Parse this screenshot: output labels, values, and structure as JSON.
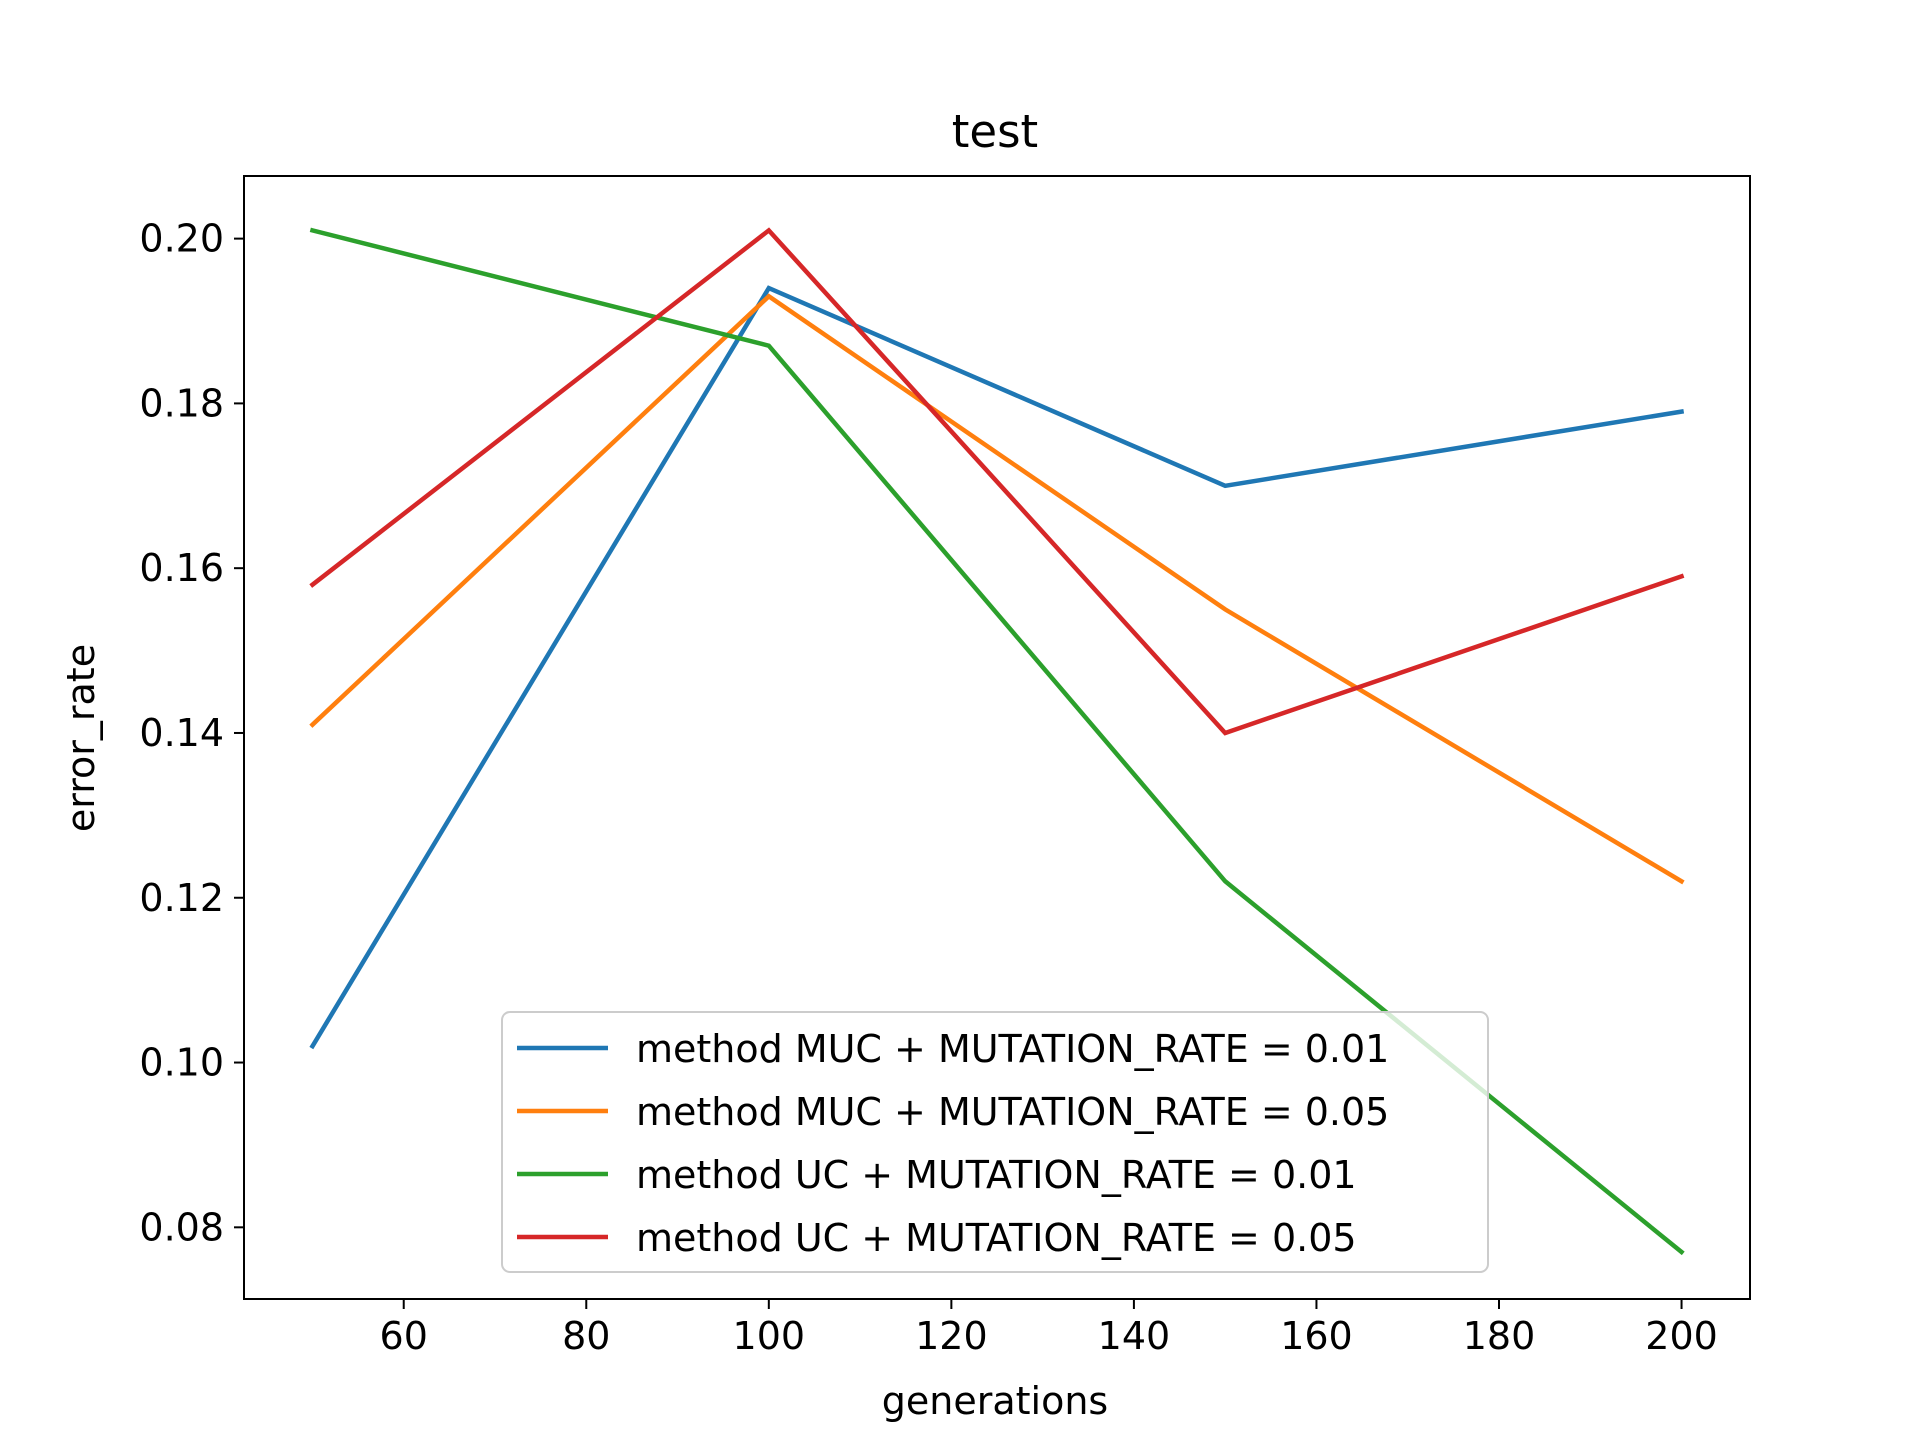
{
  "chart_data": {
    "type": "line",
    "title": "test",
    "xlabel": "generations",
    "ylabel": "error_rate",
    "x": [
      50,
      100,
      150,
      200
    ],
    "xlim": [
      42.5,
      207.5
    ],
    "ylim": [
      0.0713,
      0.2076
    ],
    "xticks": [
      60,
      80,
      100,
      120,
      140,
      160,
      180,
      200
    ],
    "yticks": [
      0.08,
      0.1,
      0.12,
      0.14,
      0.16,
      0.18,
      0.2
    ],
    "xtick_labels": [
      "60",
      "80",
      "100",
      "120",
      "140",
      "160",
      "180",
      "200"
    ],
    "ytick_labels": [
      "0.08",
      "0.10",
      "0.12",
      "0.14",
      "0.16",
      "0.18",
      "0.20"
    ],
    "grid": false,
    "legend_position": "lower-center",
    "series": [
      {
        "name": "method MUC + MUTATION_RATE = 0.01",
        "color": "#1f77b4",
        "values": [
          0.102,
          0.194,
          0.17,
          0.179
        ]
      },
      {
        "name": "method MUC + MUTATION_RATE = 0.05",
        "color": "#ff7f0e",
        "values": [
          0.141,
          0.193,
          0.155,
          0.122
        ]
      },
      {
        "name": "method UC + MUTATION_RATE = 0.01",
        "color": "#2ca02c",
        "values": [
          0.201,
          0.187,
          0.122,
          0.077
        ]
      },
      {
        "name": "method UC + MUTATION_RATE = 0.05",
        "color": "#d62728",
        "values": [
          0.158,
          0.201,
          0.14,
          0.159
        ]
      }
    ]
  }
}
